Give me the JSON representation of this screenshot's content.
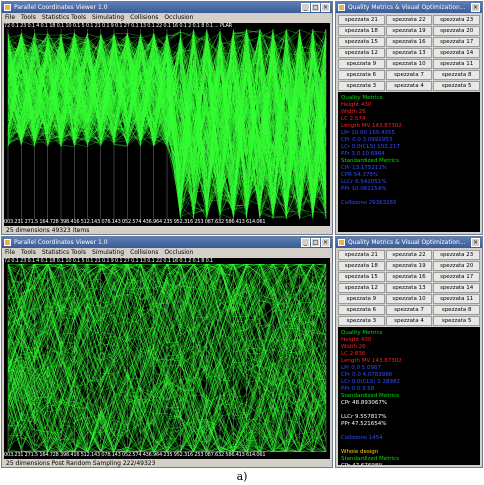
{
  "top": {
    "main": {
      "title": "Parallel Coordinates Viewer 1.0",
      "menu": [
        "File",
        "Tools",
        "Statistics Tools",
        "Simulating",
        "Collisions",
        "Occlusion"
      ],
      "axis_top": "72 0.1 23 0.1 4 0.1 18 0.1 10 0.1 5 0.1 21 0.1 9 0.1 27 0.1 13 0.1 22 0.1 16 0.1 2 0.1 8 0.1 ... PLAR",
      "axis_bottom": "003.231 271.5 164.728 398.416 512.143 078.143 052.574 436.964 235 952.316 253 087.632 586.413 614.061",
      "status": "25 dimensions   49323 items"
    },
    "quality": {
      "title": "Quality Metrics & Visual Optimization...",
      "buttons": [
        "spezzata 21",
        "spezzata 22",
        "spezzata 23",
        "spezzata 18",
        "spezzata 19",
        "spezzata 20",
        "spezzata 15",
        "spezzata 16",
        "spezzata 17",
        "spezzata 12",
        "spezzata 13",
        "spezzata 14",
        "spezzata 9",
        "spezzata 10",
        "spezzata 11",
        "spezzata 6",
        "spezzata 7",
        "spezzata 8",
        "spezzata 3",
        "spezzata 4",
        "spezzata 5",
        "spezzata 0",
        "spezzata 1",
        "spezzata 2"
      ],
      "selected": "spezzata 0",
      "metrics": [
        {
          "text": "Quality Metrics",
          "color": "#00e000"
        },
        {
          "text": "Height 430",
          "color": "#ff2020"
        },
        {
          "text": "Width 26",
          "color": "#ff2020"
        },
        {
          "text": "LC 2.574",
          "color": "#ff2020"
        },
        {
          "text": "Length MV 143.87302",
          "color": "#ff2020"
        },
        {
          "text": "LPr  10.00  169.4355",
          "color": "#3050ff"
        },
        {
          "text": "CPr  0.0  3.0992953",
          "color": "#3050ff"
        },
        {
          "text": "LCr  0.0(CLS) 103.217",
          "color": "#3050ff"
        },
        {
          "text": "PPr  3.0  10.6984",
          "color": "#3050ff"
        },
        {
          "text": "Standardized Metrics",
          "color": "#00e000"
        },
        {
          "text": "CPr     13.175211%",
          "color": "#3050ff"
        },
        {
          "text": "CPR     54.375%",
          "color": "#3050ff"
        },
        {
          "text": "LLCr    8.542051%",
          "color": "#3050ff"
        },
        {
          "text": "PPr     10.081154%",
          "color": "#3050ff"
        },
        {
          "text": "",
          "color": "#000000"
        },
        {
          "text": "Collisions 29363265",
          "color": "#3050ff"
        }
      ]
    }
  },
  "bottom": {
    "main": {
      "title": "Parallel Coordinates Viewer 1.0",
      "menu": [
        "File",
        "Tools",
        "Statistics Tools",
        "Simulating",
        "Collisions",
        "Occlusion"
      ],
      "axis_top": "72 0.1 23 0.1 4 0.1 18 0.1 10 0.1 5 0.1 21 0.1 9 0.1 27 0.1 13 0.1 22 0.1 16 0.1 2 0.1 8 0.1",
      "axis_bottom": "003.231 271.5 164.728 398.416 512.143 078.143 052.574 436.964 235 952.316 253 087.632 586.413 614.061",
      "status": "25 dimensions   Post Random Sampling 222/49323"
    },
    "quality": {
      "title": "Quality Metrics & Visual Optimization...",
      "buttons": [
        "spezzata 21",
        "spezzata 22",
        "spezzata 23",
        "spezzata 18",
        "spezzata 19",
        "spezzata 20",
        "spezzata 15",
        "spezzata 16",
        "spezzata 17",
        "spezzata 12",
        "spezzata 13",
        "spezzata 14",
        "spezzata 9",
        "spezzata 10",
        "spezzata 11",
        "spezzata 6",
        "spezzata 7",
        "spezzata 8",
        "spezzata 3",
        "spezzata 4",
        "spezzata 5",
        "spezzata 0",
        "spezzata 1",
        "spezzata 2"
      ],
      "selected": "spezzata 0",
      "metrics": [
        {
          "text": "Quality Metrics",
          "color": "#00e000"
        },
        {
          "text": "Height 430",
          "color": "#ff2020"
        },
        {
          "text": "Width 26",
          "color": "#ff2020"
        },
        {
          "text": "LC 2.836",
          "color": "#ff2020"
        },
        {
          "text": "Length MV 143.87302",
          "color": "#ff2020"
        },
        {
          "text": "LPr  0.0  5.0987",
          "color": "#3050ff"
        },
        {
          "text": "CPr  0.0  4.0783986",
          "color": "#3050ff"
        },
        {
          "text": "LCr  0.0(CLS) 3.28982",
          "color": "#3050ff"
        },
        {
          "text": "PPr  0.0  3.58",
          "color": "#3050ff"
        },
        {
          "text": "Standardized Metrics",
          "color": "#00e000"
        },
        {
          "text": "CPr    48.893067%",
          "color": "#ffffff"
        },
        {
          "text": "",
          "color": "#000000"
        },
        {
          "text": "LLCr    9.557817%",
          "color": "#ffffff"
        },
        {
          "text": "PPr     47.521654%",
          "color": "#ffffff"
        },
        {
          "text": "",
          "color": "#000000"
        },
        {
          "text": "Collisions 1454",
          "color": "#3050ff"
        },
        {
          "text": "",
          "color": "#000000"
        },
        {
          "text": "Whole design",
          "color": "#ffd020"
        },
        {
          "text": "Standardized Metrics",
          "color": "#00e000"
        },
        {
          "text": "CPr     47.67698%",
          "color": "#ffffff"
        }
      ]
    }
  },
  "caption": "a)"
}
